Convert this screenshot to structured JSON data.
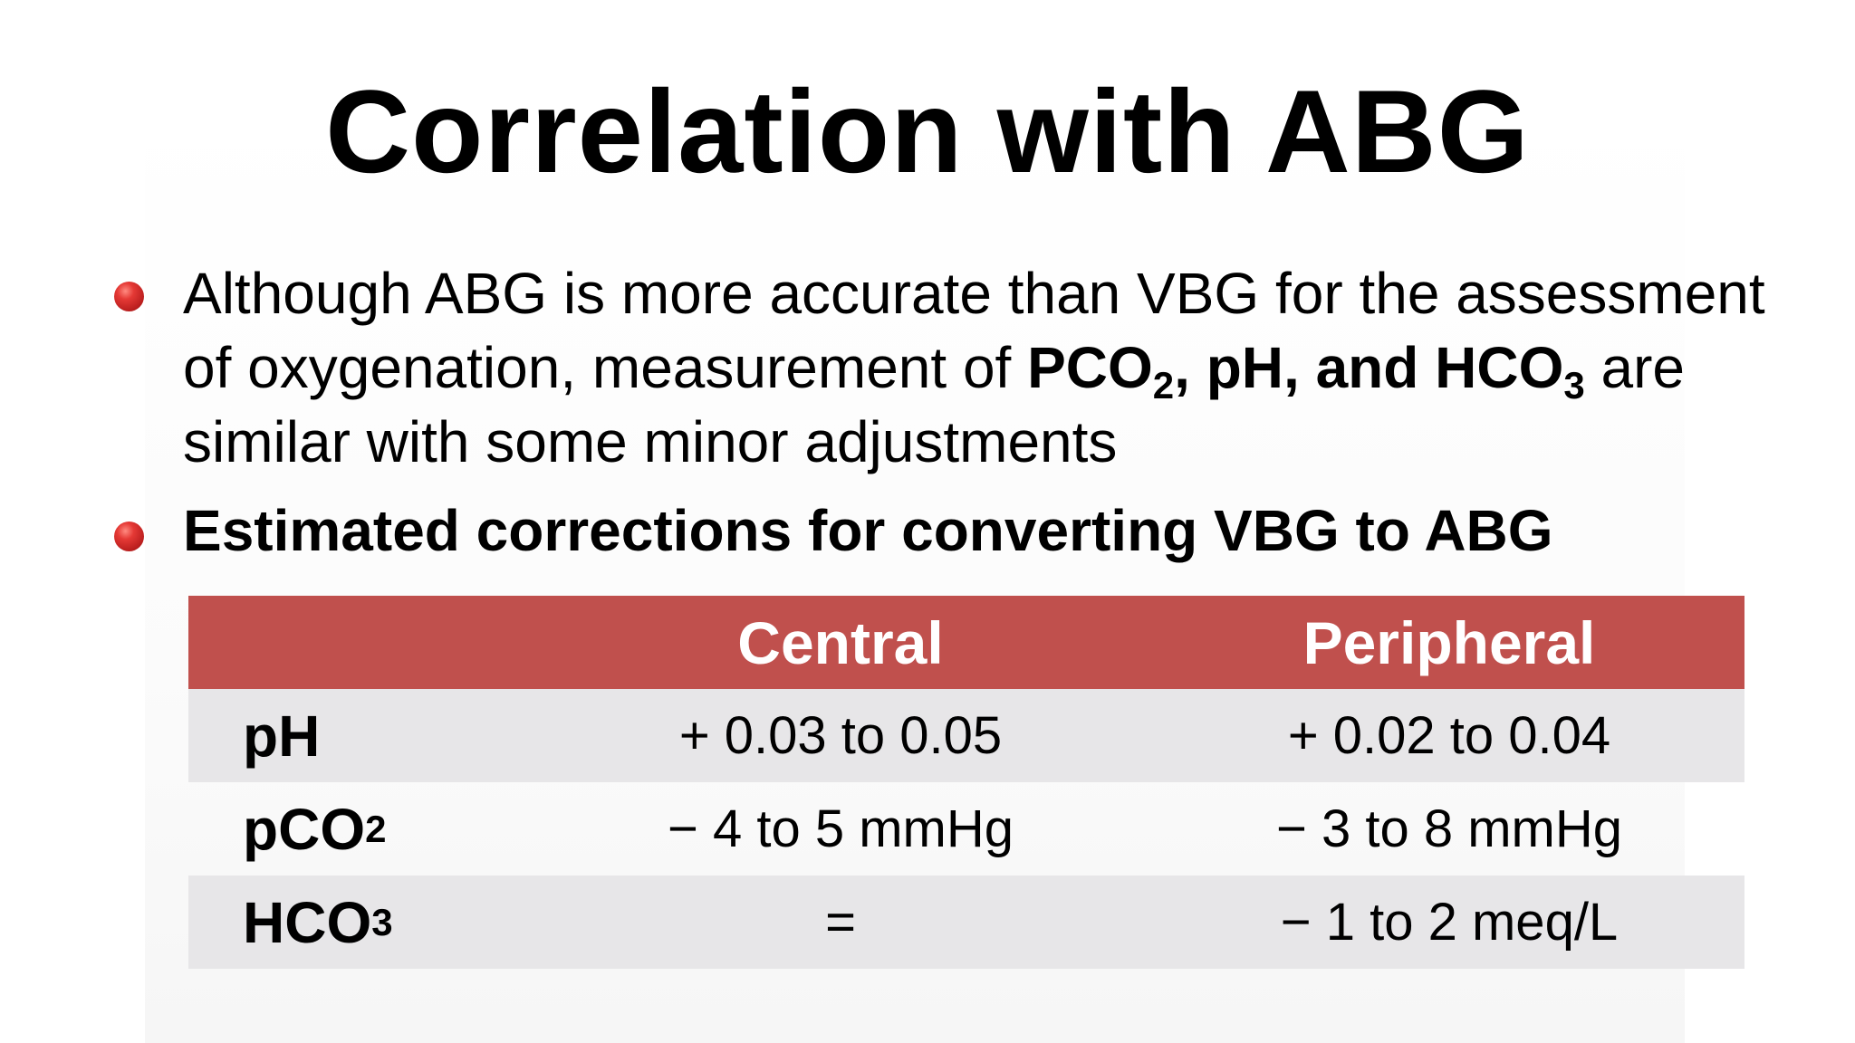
{
  "title": "Correlation with ABG",
  "bullets": {
    "p1_line_start": "Although ABG is more accurate than VBG for the assessment of oxygenation, measurement of ",
    "p1_bold": "PCO",
    "p1_bold_sub": "2",
    "p1_bold_mid": ", pH, and HCO",
    "p1_bold_sub2": "3",
    "p1_rest": " are similar with some minor adjustments",
    "p2": "Estimated corrections for converting VBG to ABG"
  },
  "table": {
    "headers": [
      "",
      "Central",
      "Peripheral"
    ],
    "rows": [
      {
        "label": "pH",
        "label_sub": "",
        "central": "+ 0.03 to 0.05",
        "peripheral": "+ 0.02 to 0.04"
      },
      {
        "label": "pCO",
        "label_sub": "2",
        "central": "− 4 to 5 mmHg",
        "peripheral": "− 3 to 8 mmHg"
      },
      {
        "label": "HCO",
        "label_sub": "3",
        "central": "=",
        "peripheral": "− 1 to 2 meq/L"
      }
    ]
  },
  "colors": {
    "header_bg": "#c0504d",
    "row_shade": "#e7e6e8",
    "bullet": "#c62828"
  }
}
